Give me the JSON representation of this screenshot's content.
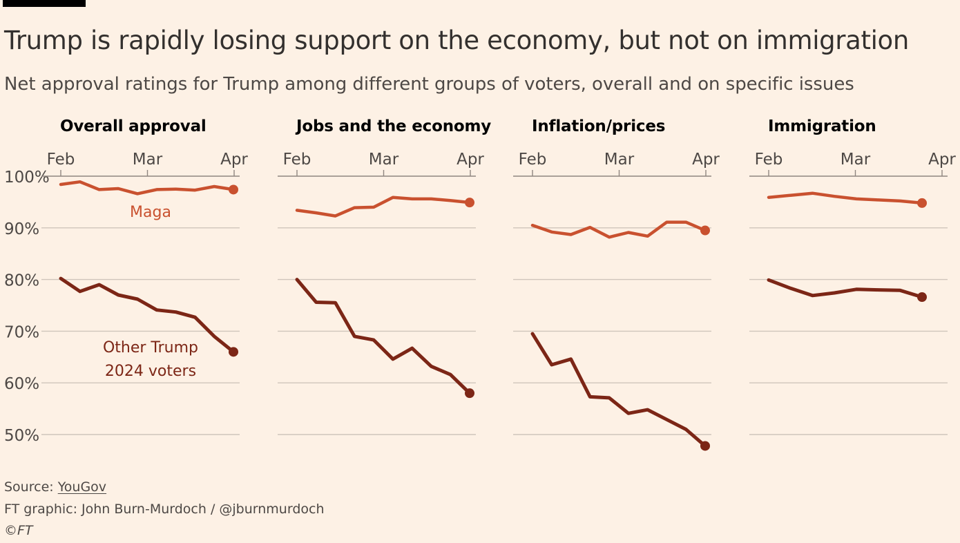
{
  "title": "Trump is rapidly losing support on the economy, but not on immigration",
  "subtitle": "Net approval ratings for Trump among different groups of voters, overall and on specific issues",
  "footer": {
    "source_prefix": "Source: ",
    "source_link": "YouGov",
    "credit": "FT graphic: John Burn-Murdoch / @jburnmurdoch",
    "copyright": "©FT"
  },
  "colors": {
    "background": "#fdf1e5",
    "maga": "#c9512f",
    "other": "#7c2616",
    "grid": "#cfc5bb",
    "text": "#33302e"
  },
  "chart_data": {
    "type": "line",
    "units": "%",
    "ylim": [
      46,
      100
    ],
    "yticks": [
      100,
      90,
      80,
      70,
      60,
      50
    ],
    "ytick_labels": [
      "100%",
      "90%",
      "80%",
      "70%",
      "60%",
      "50%"
    ],
    "xticks": [
      "Feb",
      "Mar",
      "Apr"
    ],
    "grid": true,
    "panels": [
      {
        "title": "Overall approval",
        "series": [
          {
            "name": "Maga",
            "values": [
              98.4,
              98.9,
              97.4,
              97.6,
              96.6,
              97.4,
              97.5,
              97.3,
              98.0,
              97.4
            ]
          },
          {
            "name": "Other Trump 2024 voters",
            "values": [
              80.2,
              77.7,
              79.0,
              77.0,
              76.2,
              74.1,
              73.7,
              72.7,
              69.0,
              66.0
            ]
          }
        ]
      },
      {
        "title": "Jobs and the economy",
        "series": [
          {
            "name": "Maga",
            "values": [
              93.4,
              92.9,
              92.3,
              93.9,
              94.0,
              95.9,
              95.6,
              95.6,
              95.3,
              94.9
            ]
          },
          {
            "name": "Other Trump 2024 voters",
            "values": [
              80.0,
              75.6,
              75.5,
              69.0,
              68.3,
              64.6,
              66.7,
              63.2,
              61.6,
              58.0
            ]
          }
        ]
      },
      {
        "title": "Inflation/prices",
        "series": [
          {
            "name": "Maga",
            "values": [
              90.5,
              89.2,
              88.7,
              90.1,
              88.2,
              89.1,
              88.4,
              91.1,
              91.1,
              89.5
            ]
          },
          {
            "name": "Other Trump 2024 voters",
            "values": [
              69.5,
              63.5,
              64.6,
              57.3,
              57.1,
              54.1,
              54.8,
              52.9,
              51.0,
              47.8
            ]
          }
        ]
      },
      {
        "title": "Immigration",
        "series": [
          {
            "name": "Maga",
            "values": [
              95.9,
              96.3,
              96.7,
              96.1,
              95.6,
              95.4,
              95.2,
              94.8
            ]
          },
          {
            "name": "Other Trump 2024 voters",
            "values": [
              79.9,
              78.3,
              76.9,
              77.4,
              78.1,
              78.0,
              77.9,
              76.6
            ]
          }
        ]
      }
    ],
    "annotations": [
      {
        "panel": 0,
        "text": "Maga"
      },
      {
        "panel": 0,
        "text": "Other Trump",
        "text2": "2024 voters"
      }
    ]
  }
}
